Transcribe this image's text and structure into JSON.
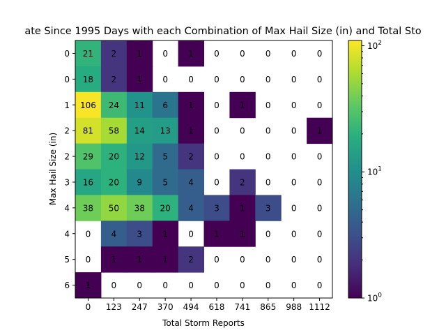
{
  "chart_data": {
    "type": "heatmap",
    "title": "ate Since 1995 Days with each Combination of Max Hail Size (in) and Total Sto",
    "xlabel": "Total Storm Reports",
    "ylabel": "Max Hail Size (in)",
    "x_tick_labels": [
      "0",
      "123",
      "247",
      "370",
      "494",
      "618",
      "741",
      "865",
      "988",
      "1112"
    ],
    "y_tick_labels": [
      "0",
      "0",
      "1",
      "2",
      "2",
      "3",
      "4",
      "4",
      "5",
      "6"
    ],
    "cells": [
      [
        21,
        2,
        1,
        0,
        1,
        0,
        0,
        0,
        0,
        0
      ],
      [
        18,
        2,
        1,
        0,
        0,
        0,
        0,
        0,
        0,
        0
      ],
      [
        106,
        24,
        11,
        6,
        1,
        0,
        1,
        0,
        0,
        0
      ],
      [
        81,
        58,
        14,
        13,
        1,
        0,
        0,
        0,
        0,
        1
      ],
      [
        29,
        20,
        12,
        5,
        2,
        0,
        0,
        0,
        0,
        0
      ],
      [
        16,
        20,
        9,
        5,
        4,
        0,
        2,
        0,
        0,
        0
      ],
      [
        38,
        50,
        38,
        20,
        4,
        3,
        1,
        3,
        0,
        0
      ],
      [
        0,
        4,
        3,
        1,
        0,
        1,
        1,
        0,
        0,
        0
      ],
      [
        0,
        1,
        1,
        1,
        2,
        0,
        0,
        0,
        0,
        0
      ],
      [
        1,
        0,
        0,
        0,
        0,
        0,
        0,
        0,
        0,
        0
      ]
    ],
    "colorscale": "viridis",
    "color_scale_type": "log",
    "color_range": [
      1,
      110
    ],
    "colorbar_tick_labels": [
      {
        "base": "10",
        "exp": "0",
        "value": 1
      },
      {
        "base": "10",
        "exp": "1",
        "value": 10
      },
      {
        "base": "10",
        "exp": "2",
        "value": 100
      }
    ],
    "zero_cells_blank": true,
    "grid": false
  }
}
